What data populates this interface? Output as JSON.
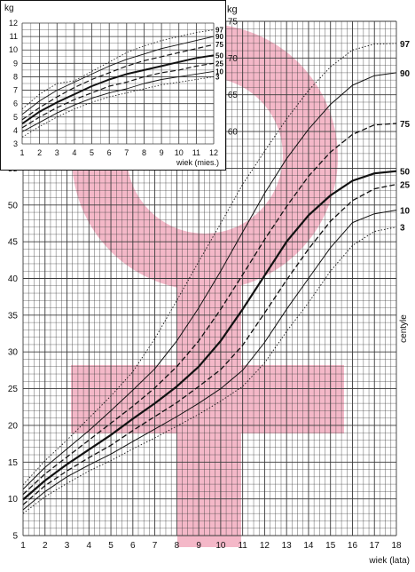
{
  "colors": {
    "symbol": "#f4b8c8",
    "grid": "#3a3a3a",
    "curve": "#111111"
  },
  "chart_data": [
    {
      "type": "line",
      "xlabel": "wiek (lata)",
      "ylabel": "kg",
      "centile_label": "centyle",
      "xlim": [
        1,
        18
      ],
      "ylim": [
        5,
        75
      ],
      "x_ticks": [
        1,
        2,
        3,
        4,
        5,
        6,
        7,
        8,
        9,
        10,
        11,
        12,
        13,
        14,
        15,
        16,
        17,
        18
      ],
      "y_ticks_left": [
        5,
        10,
        15,
        20,
        25,
        30,
        35,
        40,
        45,
        50,
        55
      ],
      "y_ticks_right": [
        60,
        65,
        70,
        75
      ],
      "x": [
        1,
        2,
        3,
        4,
        5,
        6,
        7,
        8,
        9,
        10,
        11,
        12,
        13,
        14,
        15,
        16,
        17,
        18
      ],
      "series": [
        {
          "name": "3",
          "style": "dotted",
          "values": [
            8.0,
            10.3,
            12.1,
            13.8,
            15.2,
            16.8,
            18.3,
            19.9,
            21.5,
            23.3,
            25.3,
            28.5,
            32.8,
            36.7,
            41.0,
            44.5,
            46.4,
            47.0
          ]
        },
        {
          "name": "10",
          "style": "solid",
          "values": [
            8.5,
            11.0,
            13.0,
            14.6,
            16.1,
            17.8,
            19.5,
            21.2,
            23.0,
            25.0,
            27.5,
            31.3,
            35.8,
            40.0,
            44.2,
            47.6,
            48.8,
            49.3
          ]
        },
        {
          "name": "25",
          "style": "dashed",
          "values": [
            9.2,
            11.8,
            13.8,
            15.6,
            17.3,
            19.3,
            21.2,
            23.1,
            25.3,
            27.6,
            30.9,
            35.3,
            39.8,
            44.0,
            47.8,
            50.6,
            52.2,
            52.8
          ]
        },
        {
          "name": "50",
          "style": "bold",
          "values": [
            9.9,
            12.5,
            14.7,
            16.7,
            18.7,
            20.9,
            23.0,
            25.3,
            28.0,
            31.5,
            35.8,
            40.4,
            45.0,
            48.6,
            51.3,
            53.3,
            54.3,
            54.6
          ]
        },
        {
          "name": "75",
          "style": "dashed",
          "values": [
            10.6,
            13.4,
            15.7,
            18.0,
            20.3,
            22.6,
            25.1,
            28.0,
            31.5,
            35.8,
            40.5,
            45.3,
            49.8,
            53.9,
            57.2,
            59.6,
            60.9,
            61.1
          ]
        },
        {
          "name": "90",
          "style": "solid",
          "values": [
            11.3,
            14.3,
            16.8,
            19.3,
            22.0,
            24.8,
            27.7,
            31.5,
            36.0,
            41.0,
            46.3,
            51.6,
            56.3,
            60.3,
            63.7,
            66.3,
            67.6,
            68.0
          ]
        },
        {
          "name": "97",
          "style": "dotted",
          "values": [
            11.9,
            15.2,
            18.0,
            21.0,
            24.0,
            27.3,
            31.8,
            37.0,
            42.3,
            47.5,
            52.8,
            57.3,
            61.7,
            65.6,
            68.8,
            71.1,
            71.9,
            72.0
          ]
        }
      ]
    },
    {
      "type": "line",
      "xlabel": "wiek (mies.)",
      "ylabel": "kg",
      "xlim": [
        1,
        12
      ],
      "ylim": [
        3,
        12
      ],
      "x_ticks": [
        1,
        2,
        3,
        4,
        5,
        6,
        7,
        8,
        9,
        10,
        11,
        12
      ],
      "y_ticks": [
        3,
        4,
        5,
        6,
        7,
        8,
        9,
        10,
        11,
        12
      ],
      "x": [
        1,
        2,
        3,
        4,
        5,
        6,
        7,
        8,
        9,
        10,
        11,
        12
      ],
      "series": [
        {
          "name": "3",
          "style": "dotted",
          "values": [
            3.5,
            4.3,
            5.0,
            5.6,
            6.1,
            6.5,
            6.8,
            7.1,
            7.4,
            7.6,
            7.8,
            8.0
          ]
        },
        {
          "name": "10",
          "style": "solid",
          "values": [
            3.9,
            4.6,
            5.3,
            5.9,
            6.4,
            6.8,
            7.1,
            7.5,
            7.8,
            8.0,
            8.2,
            8.4
          ]
        },
        {
          "name": "25",
          "style": "dashed",
          "values": [
            4.2,
            5.0,
            5.7,
            6.3,
            6.8,
            7.3,
            7.6,
            8.0,
            8.3,
            8.5,
            8.8,
            9.0
          ]
        },
        {
          "name": "50",
          "style": "bold",
          "values": [
            4.5,
            5.4,
            6.1,
            6.7,
            7.3,
            7.8,
            8.2,
            8.5,
            8.8,
            9.1,
            9.4,
            9.6
          ]
        },
        {
          "name": "75",
          "style": "dashed",
          "values": [
            4.8,
            5.7,
            6.5,
            7.2,
            7.8,
            8.3,
            8.8,
            9.2,
            9.5,
            9.8,
            10.1,
            10.4
          ]
        },
        {
          "name": "90",
          "style": "solid",
          "values": [
            5.2,
            6.2,
            7.0,
            7.6,
            8.2,
            8.8,
            9.3,
            9.7,
            10.1,
            10.4,
            10.7,
            11.0
          ]
        },
        {
          "name": "97",
          "style": "dotted",
          "values": [
            5.6,
            6.7,
            7.5,
            7.7,
            8.4,
            9.1,
            9.8,
            10.3,
            10.7,
            11.0,
            11.3,
            11.5
          ]
        }
      ]
    }
  ]
}
